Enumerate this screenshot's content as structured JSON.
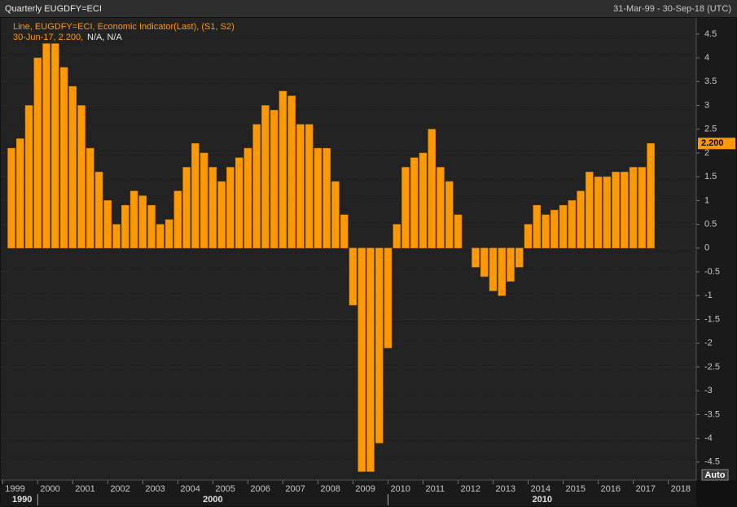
{
  "chart_data": {
    "type": "bar",
    "title": "Quarterly EUGDFY=ECI",
    "date_range": "31-Mar-99 - 30-Sep-18 (UTC)",
    "legend": "Line, EUGDFY=ECI, Economic Indicator(Last), (S1, S2)",
    "readout": [
      "30-Jun-17, 2.200,",
      "N/A, N/A"
    ],
    "button": "Auto",
    "color": "#ff9900",
    "grid": true,
    "x": [
      1999.25,
      1999.5,
      1999.75,
      2000,
      2000.25,
      2000.5,
      2000.75,
      2001,
      2001.25,
      2001.5,
      2001.75,
      2002,
      2002.25,
      2002.5,
      2002.75,
      2003,
      2003.25,
      2003.5,
      2003.75,
      2004,
      2004.25,
      2004.5,
      2004.75,
      2005,
      2005.25,
      2005.5,
      2005.75,
      2006,
      2006.25,
      2006.5,
      2006.75,
      2007,
      2007.25,
      2007.5,
      2007.75,
      2008,
      2008.25,
      2008.5,
      2008.75,
      2009,
      2009.25,
      2009.5,
      2009.75,
      2010,
      2010.25,
      2010.5,
      2010.75,
      2011,
      2011.25,
      2011.5,
      2011.75,
      2012,
      2012.25,
      2012.5,
      2012.75,
      2013,
      2013.25,
      2013.5,
      2013.75,
      2014,
      2014.25,
      2014.5,
      2014.75,
      2015,
      2015.25,
      2015.5,
      2015.75,
      2016,
      2016.25,
      2016.5,
      2016.75,
      2017,
      2017.25,
      2017.5
    ],
    "values": [
      2.1,
      2.3,
      3.0,
      4.0,
      4.3,
      4.3,
      3.8,
      3.4,
      3.0,
      2.1,
      1.6,
      1.0,
      0.5,
      0.9,
      1.2,
      1.1,
      0.9,
      0.5,
      0.6,
      1.2,
      1.7,
      2.2,
      2.0,
      1.7,
      1.4,
      1.7,
      1.9,
      2.1,
      2.6,
      3.0,
      2.9,
      3.3,
      3.2,
      2.6,
      2.6,
      2.1,
      2.1,
      1.4,
      0.7,
      -1.2,
      -4.7,
      -4.7,
      -4.1,
      -2.1,
      0.5,
      1.7,
      1.9,
      2.0,
      2.5,
      1.7,
      1.4,
      0.7,
      0,
      -0.4,
      -0.6,
      -0.9,
      -1.0,
      -0.7,
      -0.4,
      0.5,
      0.9,
      0.7,
      0.8,
      0.9,
      1.0,
      1.2,
      1.6,
      1.5,
      1.5,
      1.6,
      1.6,
      1.7,
      1.7,
      2.2
    ],
    "value_labels": [
      null,
      null,
      null,
      null,
      null,
      null,
      null,
      null,
      null,
      null,
      null,
      null,
      null,
      null,
      null,
      null,
      null,
      null,
      null,
      null,
      null,
      null,
      null,
      null,
      null,
      null,
      null,
      null,
      null,
      null,
      null,
      null,
      null,
      null,
      null,
      null,
      null,
      null,
      null,
      null,
      null,
      null,
      null,
      null,
      null,
      null,
      null,
      null,
      null,
      null,
      null,
      null,
      null,
      null,
      null,
      null,
      null,
      null,
      null,
      null,
      null,
      null,
      null,
      null,
      null,
      null,
      null,
      null,
      null,
      null,
      null,
      null,
      null,
      "2.200"
    ],
    "xlim": [
      1999.11,
      2018.8
    ],
    "xticks": [
      1999,
      2000,
      2001,
      2002,
      2003,
      2004,
      2005,
      2006,
      2007,
      2008,
      2009,
      2010,
      2011,
      2012,
      2013,
      2014,
      2015,
      2016,
      2017,
      2018
    ],
    "decades": [
      {
        "value": 1990,
        "label": "1990"
      },
      {
        "value": 2000,
        "label": "2000"
      },
      {
        "value": 2010,
        "label": "2010"
      }
    ],
    "ylim": [
      -4.88,
      4.84
    ],
    "yticks": [
      4.5,
      4,
      3.5,
      3,
      2.5,
      2,
      1.5,
      1,
      0.5,
      0,
      -0.5,
      -1,
      -1.5,
      -2,
      -2.5,
      -3,
      -3.5,
      -4,
      -4.5
    ]
  }
}
